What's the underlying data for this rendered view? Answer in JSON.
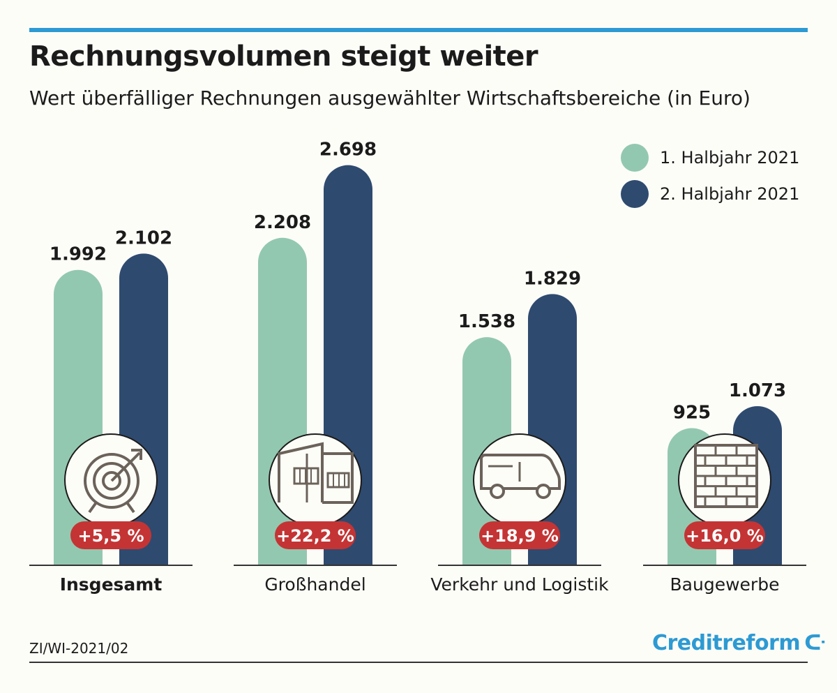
{
  "title": "Rechnungsvolumen steigt weiter",
  "subtitle": "Wert überfälliger Rechnungen ausgewählter Wirtschaftsbereiche (in Euro)",
  "source": "ZI/WI-2021/02",
  "logo_text": "Creditreform",
  "colors": {
    "h1": "#93c8b0",
    "h2": "#2f4a6f",
    "badge": "#c43434",
    "accent": "#2d9ad3"
  },
  "chart_data": {
    "type": "bar",
    "title": "Rechnungsvolumen steigt weiter",
    "subtitle": "Wert überfälliger Rechnungen ausgewählter Wirtschaftsbereiche (in Euro)",
    "categories": [
      "Insgesamt",
      "Großhandel",
      "Verkehr und Logistik",
      "Baugewerbe"
    ],
    "series": [
      {
        "name": "1. Halbjahr 2021",
        "values": [
          1992,
          2208,
          1538,
          925
        ],
        "labels": [
          "1.992",
          "2.208",
          "1.538",
          "925"
        ]
      },
      {
        "name": "2. Halbjahr 2021",
        "values": [
          2102,
          2698,
          1829,
          1073
        ],
        "labels": [
          "2.102",
          "2.698",
          "1.829",
          "1.073"
        ]
      }
    ],
    "changes": [
      "+5,5 %",
      "+22,2 %",
      "+18,9 %",
      "+16,0 %"
    ],
    "icons": [
      "target-icon",
      "building-icon",
      "van-icon",
      "brick-wall-icon"
    ],
    "legend_position": "top-right",
    "grid": false
  }
}
